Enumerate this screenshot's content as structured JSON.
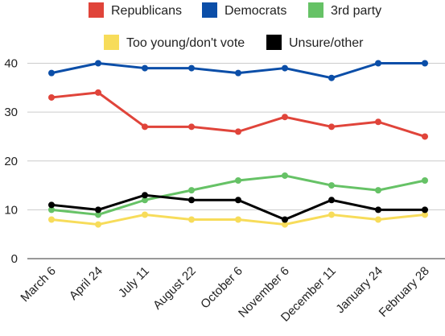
{
  "chart_data": {
    "type": "line",
    "title": "",
    "xlabel": "",
    "ylabel": "",
    "categories": [
      "March 6",
      "April 24",
      "July 11",
      "August 22",
      "October 6",
      "November 6",
      "December 11",
      "January 24",
      "February 28"
    ],
    "ylim": [
      0,
      40
    ],
    "yticks": [
      0,
      10,
      20,
      30,
      40
    ],
    "grid": true,
    "legend_position": "top",
    "series": [
      {
        "name": "Republicans",
        "color": "#e0443a",
        "values": [
          33,
          34,
          27,
          27,
          26,
          29,
          27,
          28,
          25
        ]
      },
      {
        "name": "Democrats",
        "color": "#0b4ea8",
        "values": [
          38,
          40,
          39,
          39,
          38,
          39,
          37,
          40,
          40
        ]
      },
      {
        "name": "3rd party",
        "color": "#66c266",
        "values": [
          10,
          9,
          12,
          14,
          16,
          17,
          15,
          14,
          16
        ]
      },
      {
        "name": "Too young/don't vote",
        "color": "#f7dc5a",
        "values": [
          8,
          7,
          9,
          8,
          8,
          7,
          9,
          8,
          9
        ]
      },
      {
        "name": "Unsure/other",
        "color": "#000000",
        "values": [
          11,
          10,
          13,
          12,
          12,
          8,
          12,
          10,
          10
        ]
      }
    ]
  }
}
